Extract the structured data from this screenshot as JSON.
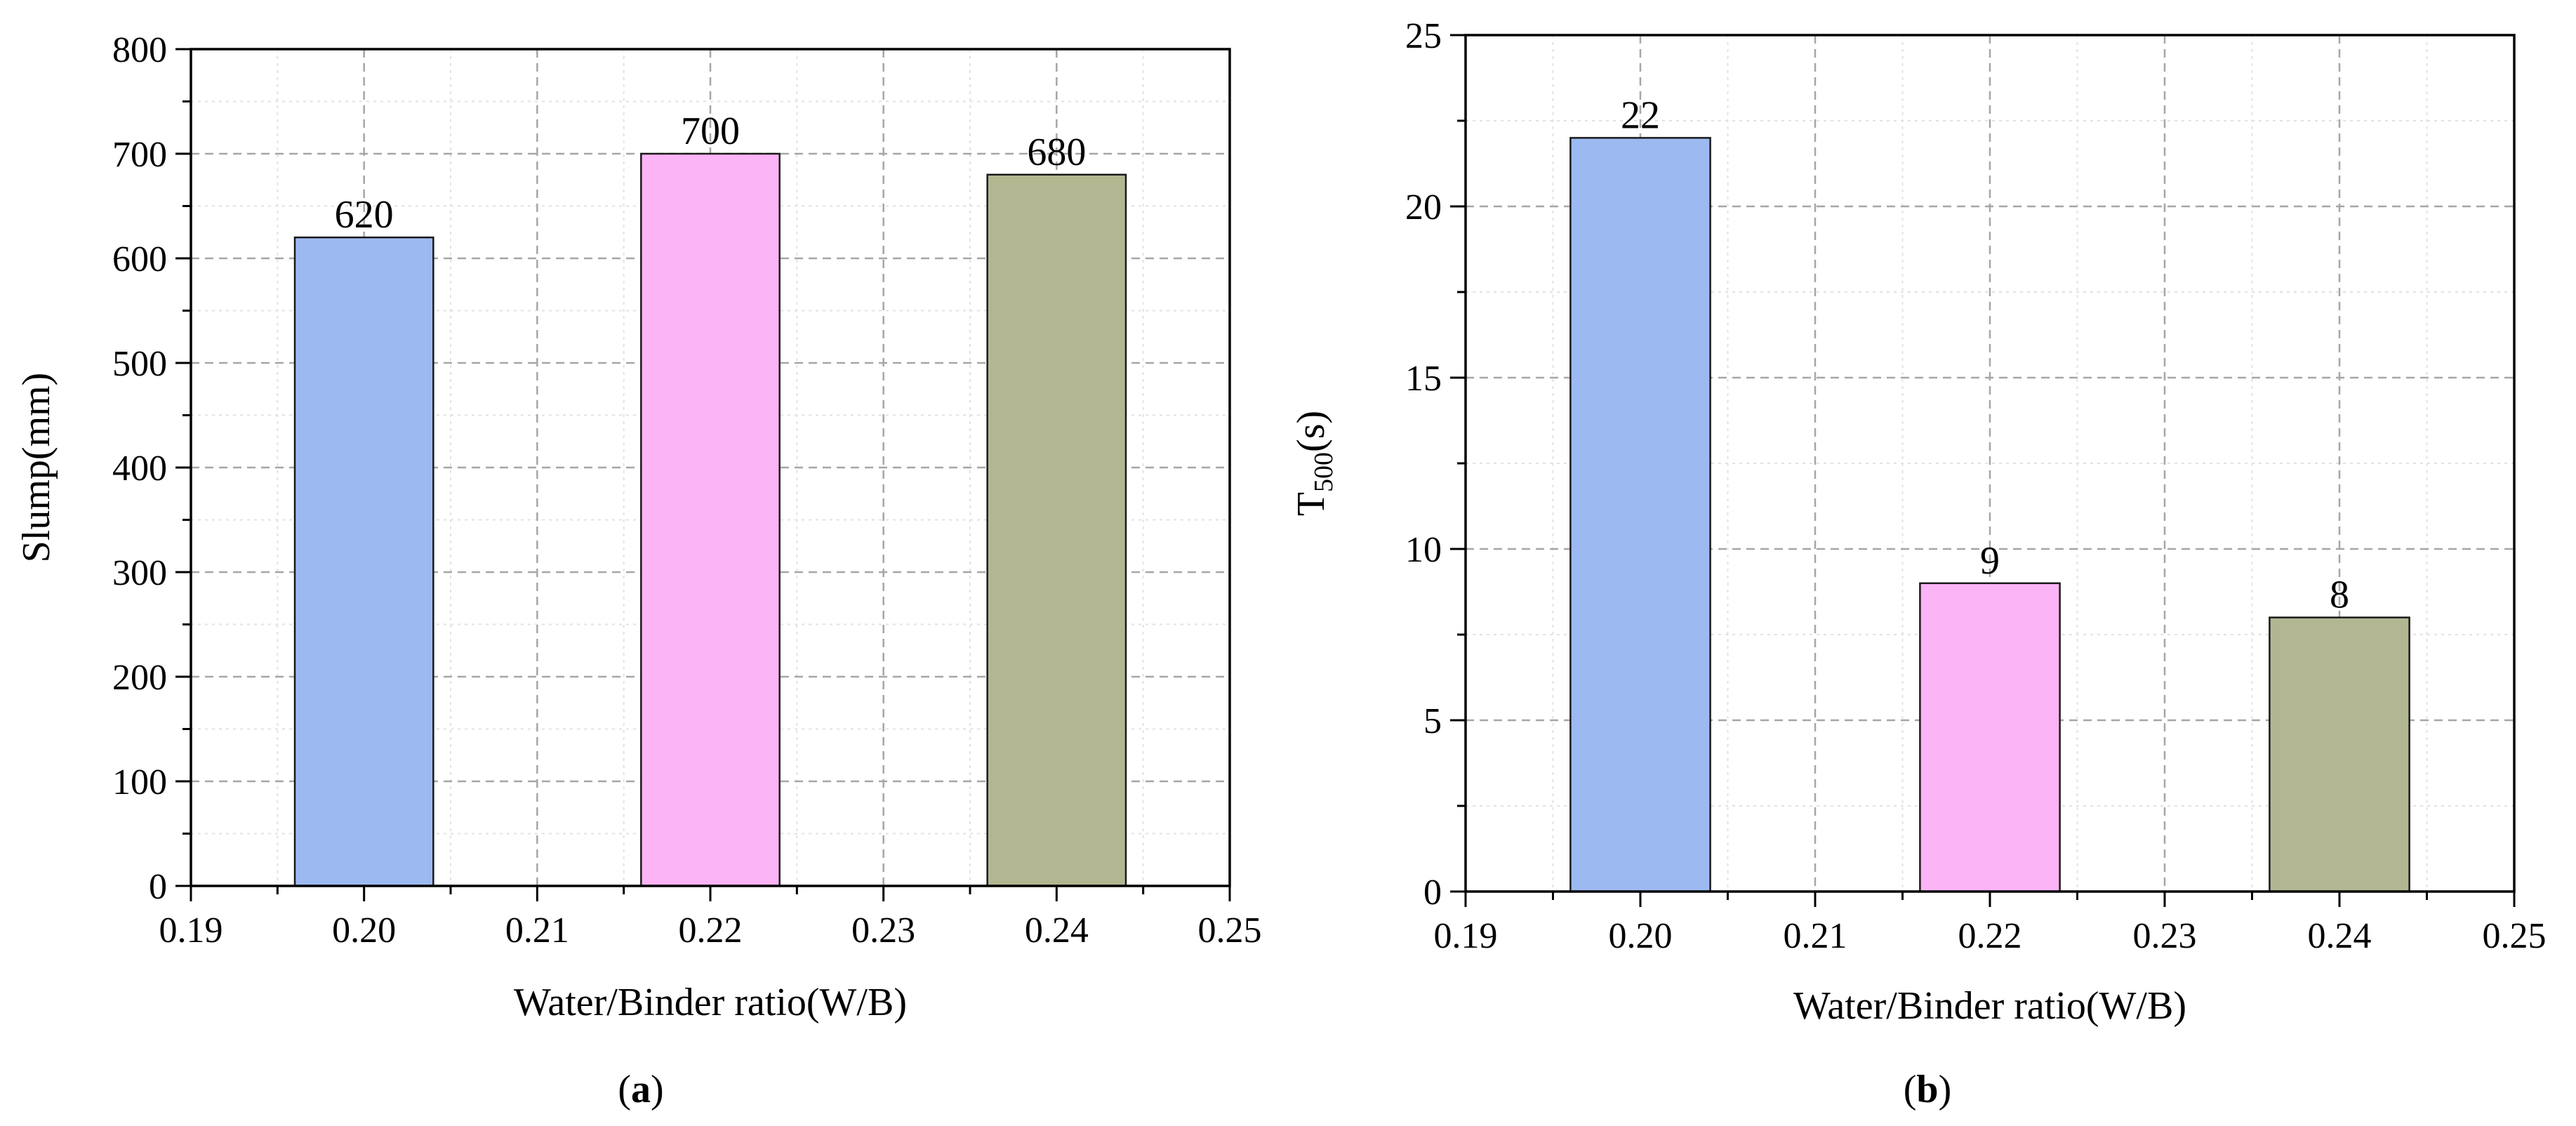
{
  "chart_data": [
    {
      "type": "bar",
      "panel_label": "a",
      "xlabel": "Water/Binder ratio(W/B)",
      "ylabel": "Slump(mm)",
      "x_ticks": [
        0.19,
        0.2,
        0.21,
        0.22,
        0.23,
        0.24,
        0.25
      ],
      "x_tick_labels": [
        "0.19",
        "0.20",
        "0.21",
        "0.22",
        "0.23",
        "0.24",
        "0.25"
      ],
      "xlim": [
        0.19,
        0.25
      ],
      "y_ticks": [
        0,
        100,
        200,
        300,
        400,
        500,
        600,
        700,
        800
      ],
      "ylim": [
        0,
        800
      ],
      "x": [
        0.2,
        0.22,
        0.24
      ],
      "values": [
        620,
        700,
        680
      ],
      "value_labels": [
        "620",
        "700",
        "680"
      ],
      "colors": [
        "#9DB9F2",
        "#FBB4F5",
        "#B2B791"
      ],
      "grid": true
    },
    {
      "type": "bar",
      "panel_label": "b",
      "xlabel": "Water/Binder ratio(W/B)",
      "ylabel_main": "T",
      "ylabel_sub": "500",
      "ylabel_suffix": "(s)",
      "x_ticks": [
        0.19,
        0.2,
        0.21,
        0.22,
        0.23,
        0.24,
        0.25
      ],
      "x_tick_labels": [
        "0.19",
        "0.20",
        "0.21",
        "0.22",
        "0.23",
        "0.24",
        "0.25"
      ],
      "xlim": [
        0.19,
        0.25
      ],
      "y_ticks": [
        0,
        5,
        10,
        15,
        20,
        25
      ],
      "ylim": [
        0,
        25
      ],
      "x": [
        0.2,
        0.22,
        0.24
      ],
      "values": [
        22,
        9,
        8
      ],
      "value_labels": [
        "22",
        "9",
        "8"
      ],
      "colors": [
        "#9DB9F2",
        "#FBB4F5",
        "#B2B791"
      ],
      "grid": true
    }
  ]
}
